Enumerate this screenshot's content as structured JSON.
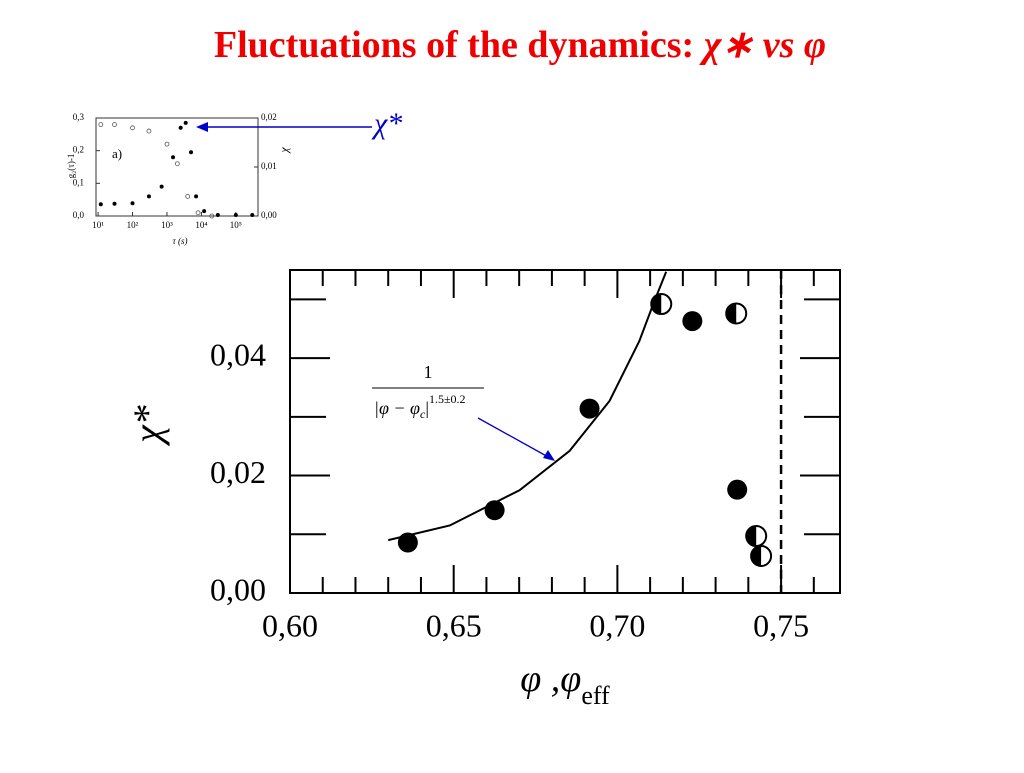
{
  "chart_data": [
    {
      "type": "scatter",
      "title": [
        "Fluctuations of the dynamics: ",
        "χ∗",
        "vs",
        "φ"
      ],
      "ylabel": "χ*",
      "xlabel": "φ ,φ",
      "xlabel_sub": "eff",
      "annotation": {
        "numerator": "1",
        "denominator": "|φ − φ",
        "denominator_sub": "c",
        "denominator_end": "|",
        "exponent": "1.5±0.2"
      },
      "xlim": [
        0.6,
        0.768
      ],
      "ylim": [
        0,
        0.055
      ],
      "xticks": [
        {
          "value": 0.6,
          "label": "0,60"
        },
        {
          "value": 0.65,
          "label": "0,65"
        },
        {
          "value": 0.7,
          "label": "0,70"
        },
        {
          "value": 0.75,
          "label": "0,75"
        }
      ],
      "xminorticks": [
        0.61,
        0.62,
        0.63,
        0.64,
        0.66,
        0.67,
        0.68,
        0.69,
        0.71,
        0.72,
        0.73,
        0.74,
        0.76
      ],
      "yticks": [
        {
          "value": 0,
          "label": "0,00"
        },
        {
          "value": 0.02,
          "label": "0,02"
        },
        {
          "value": 0.04,
          "label": "0,04"
        }
      ],
      "yminorticks": [
        0.01,
        0.03,
        0.05
      ],
      "vline": 0.75,
      "series": [
        {
          "marker": "filled",
          "color": "#000000",
          "x": [
            0.636,
            0.6625,
            0.6915,
            0.7229,
            0.7366
          ],
          "y": [
            0.0086,
            0.0141,
            0.0314,
            0.0463,
            0.0176
          ]
        },
        {
          "marker": "half",
          "color": "#000000",
          "x": [
            0.7134,
            0.7363,
            0.7424,
            0.7439
          ],
          "y": [
            0.0492,
            0.0476,
            0.0097,
            0.0063
          ]
        },
        {
          "marker": "line",
          "color": "#000000",
          "x": [
            0.63,
            0.6488,
            0.6701,
            0.6854,
            0.6976,
            0.7067,
            0.7113,
            0.7149
          ],
          "y": [
            0.009,
            0.0115,
            0.0175,
            0.0242,
            0.0327,
            0.0429,
            0.0497,
            0.0547
          ]
        }
      ]
    },
    {
      "type": "scatter",
      "logx": true,
      "ylabel": "g₂(τ)-1",
      "y2label": "χ",
      "xlabel": "τ (s)",
      "panel_label": "a)",
      "pointer_label": "χ*",
      "xlim": [
        8.7,
        440000
      ],
      "ylim": [
        0,
        0.3
      ],
      "y2lim": [
        0,
        0.02
      ],
      "xticks": [
        {
          "value": 10,
          "label": "10¹"
        },
        {
          "value": 100,
          "label": "10²"
        },
        {
          "value": 1000,
          "label": "10³"
        },
        {
          "value": 10000,
          "label": "10⁴"
        },
        {
          "value": 100000,
          "label": "10⁵"
        }
      ],
      "yticks": [
        {
          "value": 0,
          "label": "0,0"
        },
        {
          "value": 0.1,
          "label": "0,1"
        },
        {
          "value": 0.2,
          "label": "0,2"
        },
        {
          "value": 0.3,
          "label": "0,3"
        }
      ],
      "y2ticks": [
        {
          "value": 0,
          "label": "0,00"
        },
        {
          "value": 0.01,
          "label": "0,01"
        },
        {
          "value": 0.02,
          "label": "0,02"
        }
      ],
      "series": [
        {
          "marker": "open",
          "color": "#555555",
          "x": [
            12,
            30,
            100,
            300,
            1000,
            2000,
            4000,
            8000,
            20000
          ],
          "y": [
            0.28,
            0.28,
            0.27,
            0.26,
            0.22,
            0.16,
            0.06,
            0.01,
            0.0
          ]
        },
        {
          "marker": "filled",
          "axis": "y2",
          "color": "#000000",
          "x": [
            12,
            30,
            100,
            300,
            700,
            1500,
            2500,
            3500,
            5000,
            7000,
            12000,
            30000,
            100000,
            300000
          ],
          "y": [
            0.0024,
            0.0025,
            0.0026,
            0.004,
            0.006,
            0.012,
            0.018,
            0.019,
            0.013,
            0.004,
            0.001,
            0.0002,
            0.0002,
            0.0002
          ]
        }
      ]
    }
  ]
}
